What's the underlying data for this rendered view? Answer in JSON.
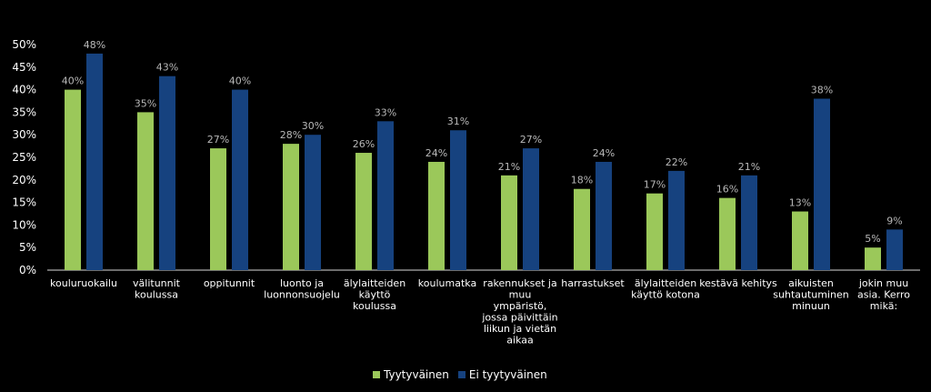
{
  "chart_data": {
    "type": "bar",
    "title": "",
    "xlabel": "",
    "ylabel": "",
    "ylim": [
      0,
      50
    ],
    "y_ticks": [
      "0%",
      "5%",
      "10%",
      "15%",
      "20%",
      "25%",
      "30%",
      "35%",
      "40%",
      "45%",
      "50%"
    ],
    "grid": false,
    "legend_position": "bottom-center",
    "categories": [
      [
        "kouluruokailu"
      ],
      [
        "välitunnit",
        "koulussa"
      ],
      [
        "oppitunnit"
      ],
      [
        "luonto ja",
        "luonnonsuojelu"
      ],
      [
        "älylaitteiden",
        "käyttö",
        "koulussa"
      ],
      [
        "koulumatka"
      ],
      [
        "rakennukset ja",
        "muu",
        "ympäristö,",
        "jossa päivittäin",
        "liikun ja vietän",
        "aikaa"
      ],
      [
        "harrastukset"
      ],
      [
        "älylaitteiden",
        "käyttö kotona"
      ],
      [
        "kestävä kehitys"
      ],
      [
        "aikuisten",
        "suhtautuminen",
        "minuun"
      ],
      [
        "jokin muu",
        "asia. Kerro",
        "mikä:"
      ]
    ],
    "series": [
      {
        "name": "Tyytyväinen",
        "color": "#9bc85a",
        "label_color": "#b8b8b8",
        "values": [
          40,
          35,
          27,
          28,
          26,
          24,
          21,
          18,
          17,
          16,
          13,
          5
        ],
        "labels": [
          "40%",
          "35%",
          "27%",
          "28%",
          "26%",
          "24%",
          "21%",
          "18%",
          "17%",
          "16%",
          "13%",
          "5%"
        ]
      },
      {
        "name": "Ei tyytyväinen",
        "color": "#16427f",
        "label_color": "#b8b8b8",
        "values": [
          48,
          43,
          40,
          30,
          33,
          31,
          27,
          24,
          22,
          21,
          38,
          9
        ],
        "labels": [
          "48%",
          "43%",
          "40%",
          "30%",
          "33%",
          "31%",
          "27%",
          "24%",
          "22%",
          "21%",
          "38%",
          "9%"
        ]
      }
    ]
  }
}
